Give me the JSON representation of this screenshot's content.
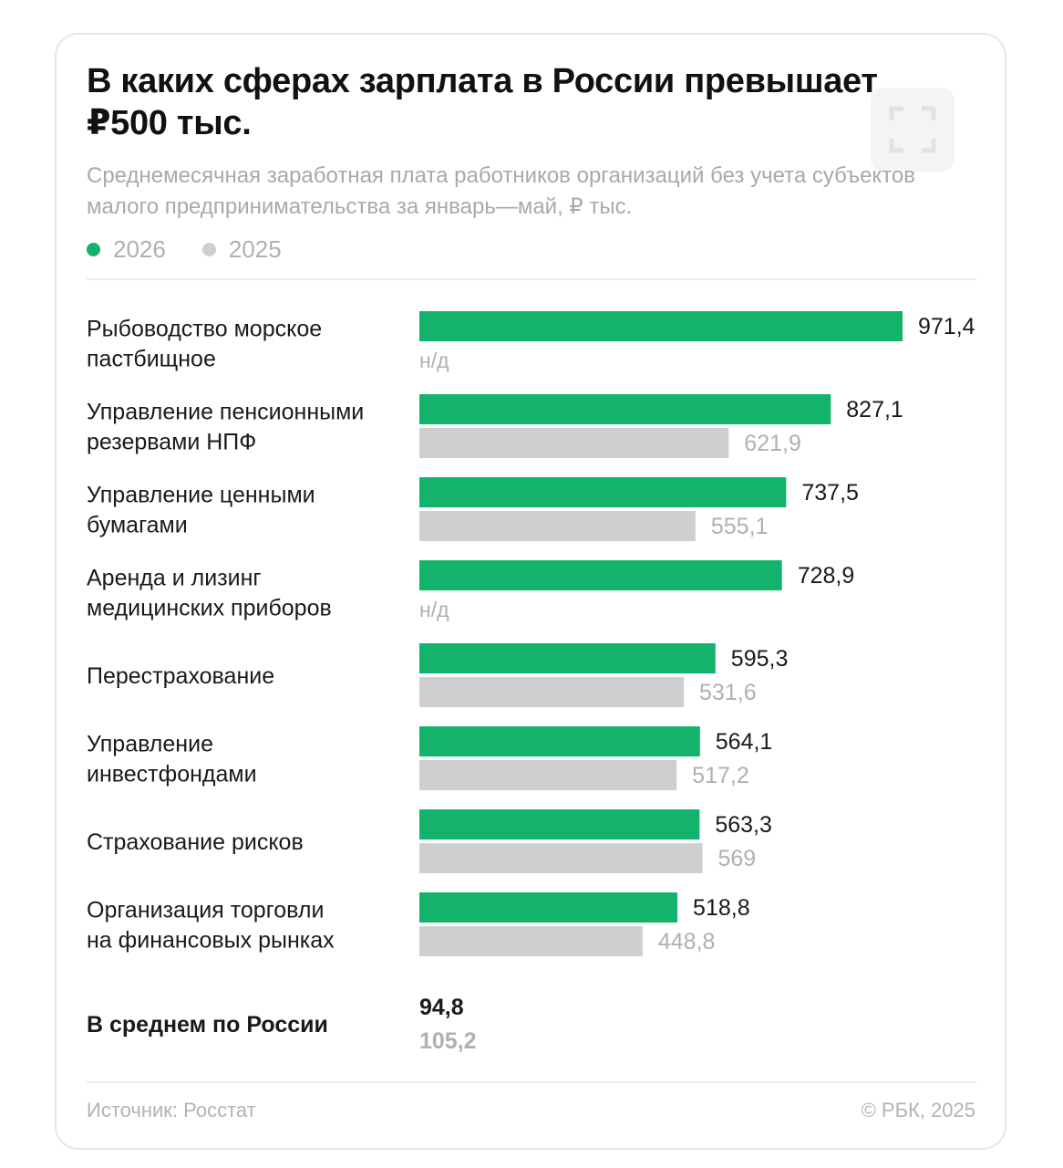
{
  "header": {
    "title": "В каких сферах зарплата в России превышает ₽500 тыс.",
    "subtitle": "Среднемесячная заработная плата работников организаций без учета субъектов малого предпринимательства за январь—май, ₽ тыс."
  },
  "legend": {
    "items": [
      {
        "label": "2026",
        "color": "#14b36b"
      },
      {
        "label": "2025",
        "color": "#cfcfcf"
      }
    ]
  },
  "colors": {
    "series_2026": "#14b36b",
    "series_2025": "#cfcfcf",
    "label_2026": "#1a1a1a",
    "label_2025": "#b0b0b0",
    "category_text": "#1a1a1a"
  },
  "icons": {
    "expand": "expand-icon"
  },
  "chart_data": {
    "type": "bar",
    "orientation": "horizontal",
    "categories": [
      [
        "Рыбоводство морское",
        "пастбищное"
      ],
      [
        "Управление пенсионными",
        "резервами НПФ"
      ],
      [
        "Управление ценными",
        "бумагами"
      ],
      [
        "Аренда и лизинг",
        "медицинских приборов"
      ],
      [
        "Перестрахование"
      ],
      [
        "Управление",
        "инвестфондами"
      ],
      [
        "Страхование рисков"
      ],
      [
        "Организация торговли",
        "на финансовых рынках"
      ]
    ],
    "series": [
      {
        "name": "2026",
        "values": [
          971.4,
          827.1,
          737.5,
          728.9,
          595.3,
          564.1,
          563.3,
          518.8
        ],
        "labels": [
          "971,4",
          "827,1",
          "737,5",
          "728,9",
          "595,3",
          "564,1",
          "563,3",
          "518,8"
        ]
      },
      {
        "name": "2025",
        "values": [
          null,
          621.9,
          555.1,
          null,
          531.6,
          517.2,
          569,
          448.8
        ],
        "labels": [
          "н/д",
          "621,9",
          "555,1",
          "н/д",
          "531,6",
          "517,2",
          "569",
          "448,8"
        ]
      }
    ],
    "xlim": [
      0,
      971.4
    ],
    "average": {
      "label": "В среднем по России",
      "value_2026": "94,8",
      "value_2025": "105,2"
    }
  },
  "footer": {
    "source": "Источник: Росстат",
    "copyright": "© РБК, 2025"
  }
}
